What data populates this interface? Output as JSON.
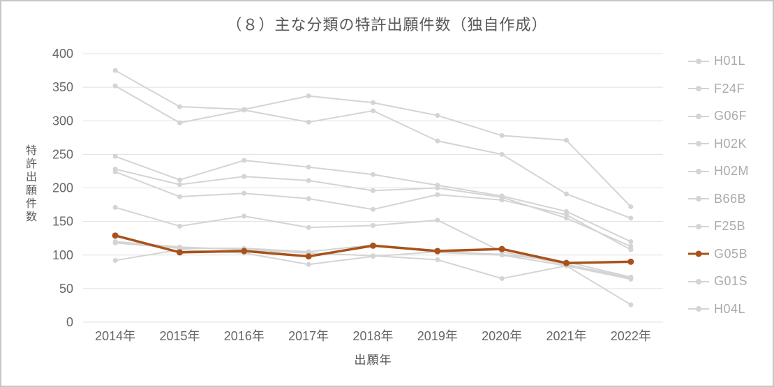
{
  "chart_data": {
    "type": "line",
    "title": "（８）主な分類の特許出願件数（独自作成）",
    "xlabel": "出願年",
    "ylabel": "特許出願件数",
    "categories": [
      "2014年",
      "2015年",
      "2016年",
      "2017年",
      "2018年",
      "2019年",
      "2020年",
      "2021年",
      "2022年"
    ],
    "ylim": [
      0,
      400
    ],
    "ytick_step": 50,
    "grid": "horizontal",
    "legend_position": "right",
    "colors": {
      "highlight": "#A8521A",
      "muted": "#D4D4D4",
      "gridline": "#E0E0E0",
      "tick_text": "#666666",
      "title_text": "#595959",
      "legend_text": "#ABABAB"
    },
    "series": [
      {
        "name": "H01L",
        "color": "muted",
        "values": [
          375,
          321,
          317,
          337,
          327,
          308,
          278,
          271,
          172
        ]
      },
      {
        "name": "F24F",
        "color": "muted",
        "values": [
          352,
          297,
          316,
          298,
          315,
          270,
          250,
          191,
          155
        ]
      },
      {
        "name": "G06F",
        "color": "muted",
        "values": [
          247,
          212,
          241,
          231,
          220,
          204,
          188,
          165,
          120
        ]
      },
      {
        "name": "H02K",
        "color": "muted",
        "values": [
          228,
          205,
          217,
          211,
          196,
          200,
          186,
          155,
          113
        ]
      },
      {
        "name": "H02M",
        "color": "muted",
        "values": [
          224,
          187,
          192,
          184,
          168,
          190,
          182,
          160,
          108
        ]
      },
      {
        "name": "B66B",
        "color": "muted",
        "values": [
          171,
          143,
          158,
          141,
          144,
          152,
          105,
          86,
          66
        ]
      },
      {
        "name": "F25B",
        "color": "muted",
        "values": [
          120,
          112,
          108,
          103,
          99,
          93,
          65,
          84,
          26
        ]
      },
      {
        "name": "G05B",
        "color": "highlight",
        "values": [
          129,
          104,
          106,
          98,
          114,
          106,
          109,
          88,
          90
        ]
      },
      {
        "name": "G01S",
        "color": "muted",
        "values": [
          92,
          108,
          103,
          86,
          98,
          105,
          101,
          90,
          67
        ]
      },
      {
        "name": "H04L",
        "color": "muted",
        "values": [
          118,
          110,
          110,
          105,
          115,
          104,
          100,
          84,
          64
        ]
      }
    ]
  }
}
